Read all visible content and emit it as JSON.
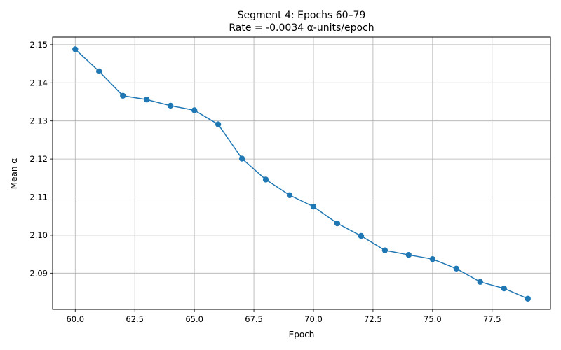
{
  "chart_data": {
    "type": "line",
    "title": "Segment 4: Epochs 60–79",
    "subtitle": "Rate = -0.0034 α-units/epoch",
    "xlabel": "Epoch",
    "ylabel": "Mean α",
    "xlim": [
      59.05,
      79.95
    ],
    "ylim": [
      2.0805,
      2.152
    ],
    "xticks": [
      60.0,
      62.5,
      65.0,
      67.5,
      70.0,
      72.5,
      75.0,
      77.5
    ],
    "xtick_labels": [
      "60.0",
      "62.5",
      "65.0",
      "67.5",
      "70.0",
      "72.5",
      "75.0",
      "77.5"
    ],
    "yticks": [
      2.09,
      2.1,
      2.11,
      2.12,
      2.13,
      2.14,
      2.15
    ],
    "ytick_labels": [
      "2.09",
      "2.10",
      "2.11",
      "2.12",
      "2.13",
      "2.14",
      "2.15"
    ],
    "grid": true,
    "color": "#1f77b4",
    "marker": "circle",
    "series": [
      {
        "x": [
          60,
          61,
          62,
          63,
          64,
          65,
          66,
          67,
          68,
          69,
          70,
          71,
          72,
          73,
          74,
          75,
          76,
          77,
          78,
          79
        ],
        "values": [
          2.1488,
          2.143,
          2.1366,
          2.1356,
          2.134,
          2.1328,
          2.1291,
          2.1201,
          2.1146,
          2.1105,
          2.1075,
          2.1031,
          2.0998,
          2.096,
          2.0948,
          2.0937,
          2.0912,
          2.0877,
          2.086,
          2.0833
        ]
      }
    ]
  }
}
